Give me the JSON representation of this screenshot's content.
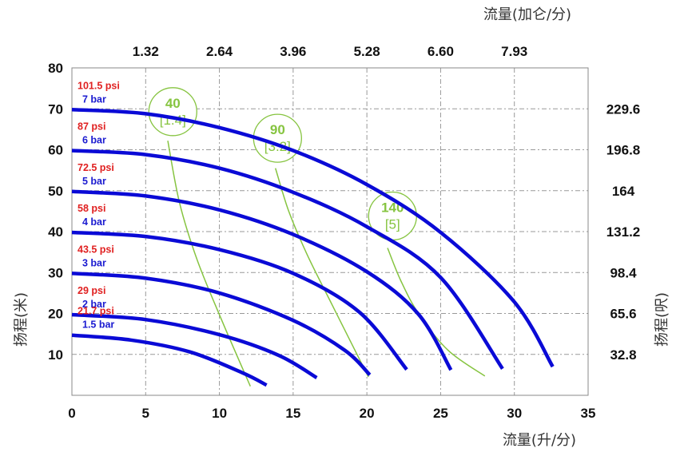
{
  "chart_data": {
    "type": "line",
    "xlabel": "流量(升/分)",
    "x2label": "流量(加仑/分)",
    "ylabel": "扬程(米)",
    "y2label": "扬程(呎)",
    "xlim": [
      0,
      35
    ],
    "ylim": [
      0,
      80
    ],
    "x_ticks": [
      "0",
      "5",
      "10",
      "15",
      "20",
      "25",
      "30",
      "35"
    ],
    "y_ticks": [
      "10",
      "20",
      "30",
      "40",
      "50",
      "60",
      "70",
      "80"
    ],
    "x2_ticks": [
      {
        "x": 5,
        "label": "1.32"
      },
      {
        "x": 10,
        "label": "2.64"
      },
      {
        "x": 15,
        "label": "3.96"
      },
      {
        "x": 20,
        "label": "5.28"
      },
      {
        "x": 25,
        "label": "6.60"
      },
      {
        "x": 30,
        "label": "7.93"
      }
    ],
    "y2_ticks": [
      {
        "y": 10,
        "label": "32.8"
      },
      {
        "y": 20,
        "label": "65.6"
      },
      {
        "y": 30,
        "label": "98.4"
      },
      {
        "y": 40,
        "label": "131.2"
      },
      {
        "y": 50,
        "label": "164"
      },
      {
        "y": 60,
        "label": "196.8"
      },
      {
        "y": 70,
        "label": "229.6"
      }
    ],
    "grid": true,
    "pressure_curves": [
      {
        "bar": "7 bar",
        "psi": "101.5 psi",
        "color": "#0a0ad6",
        "points": [
          [
            0,
            69.8
          ],
          [
            5,
            68.8
          ],
          [
            10,
            65.4
          ],
          [
            15,
            59.8
          ],
          [
            20,
            51.5
          ],
          [
            25,
            39.8
          ],
          [
            30,
            22.8
          ],
          [
            32.6,
            7
          ]
        ]
      },
      {
        "bar": "6 bar",
        "psi": "87 psi",
        "color": "#0a0ad6",
        "points": [
          [
            0,
            59.8
          ],
          [
            5,
            58.8
          ],
          [
            10,
            55.5
          ],
          [
            15,
            49.6
          ],
          [
            20,
            41.2
          ],
          [
            25,
            28.8
          ],
          [
            29.2,
            6.5
          ]
        ]
      },
      {
        "bar": "5 bar",
        "psi": "72.5 psi",
        "color": "#0a0ad6",
        "points": [
          [
            0,
            49.8
          ],
          [
            5,
            48.7
          ],
          [
            10,
            45.3
          ],
          [
            15,
            39.3
          ],
          [
            20,
            30.2
          ],
          [
            23.5,
            19.8
          ],
          [
            25.7,
            6.2
          ]
        ]
      },
      {
        "bar": "4 bar",
        "psi": "58 psi",
        "color": "#0a0ad6",
        "points": [
          [
            0,
            39.8
          ],
          [
            5,
            38.8
          ],
          [
            10,
            35.6
          ],
          [
            15,
            29.8
          ],
          [
            19.5,
            20.3
          ],
          [
            22.7,
            6.3
          ]
        ]
      },
      {
        "bar": "3 bar",
        "psi": "43.5 psi",
        "color": "#0a0ad6",
        "points": [
          [
            0,
            29.8
          ],
          [
            5,
            28.6
          ],
          [
            10,
            25.0
          ],
          [
            15,
            18.3
          ],
          [
            18.5,
            11.0
          ],
          [
            20.2,
            5
          ]
        ]
      },
      {
        "bar": "2 bar",
        "psi": "29 psi",
        "color": "#0a0ad6",
        "points": [
          [
            0,
            19.7
          ],
          [
            5,
            18.5
          ],
          [
            10,
            14.8
          ],
          [
            14.0,
            9.8
          ],
          [
            16.6,
            4.3
          ]
        ]
      },
      {
        "bar": "1.5 bar",
        "psi": "21.7 psi",
        "color": "#0a0ad6",
        "points": [
          [
            0,
            14.7
          ],
          [
            4,
            13.5
          ],
          [
            8,
            10.6
          ],
          [
            11.5,
            5.6
          ],
          [
            13.2,
            2.5
          ]
        ]
      }
    ],
    "air_curves": [
      {
        "label": "40",
        "sub": "[1.4]",
        "color": "#86c440",
        "label_at": [
          6.3,
          69.5
        ],
        "points": [
          [
            6.5,
            62.2
          ],
          [
            7.3,
            47
          ],
          [
            8.5,
            33
          ],
          [
            10.2,
            18
          ],
          [
            12.1,
            2.2
          ]
        ]
      },
      {
        "label": "90",
        "sub": "[3.2]",
        "color": "#86c440",
        "label_at": [
          13.4,
          63
        ],
        "points": [
          [
            13.8,
            55.5
          ],
          [
            14.7,
            45
          ],
          [
            16.0,
            34
          ],
          [
            17.8,
            21
          ],
          [
            20.1,
            4.5
          ]
        ]
      },
      {
        "label": "140",
        "sub": "[5]",
        "color": "#86c440",
        "label_at": [
          21.2,
          44
        ],
        "points": [
          [
            21.4,
            36
          ],
          [
            22.3,
            28
          ],
          [
            23.5,
            20
          ],
          [
            25.5,
            11
          ],
          [
            28.0,
            4.7
          ]
        ]
      }
    ]
  }
}
